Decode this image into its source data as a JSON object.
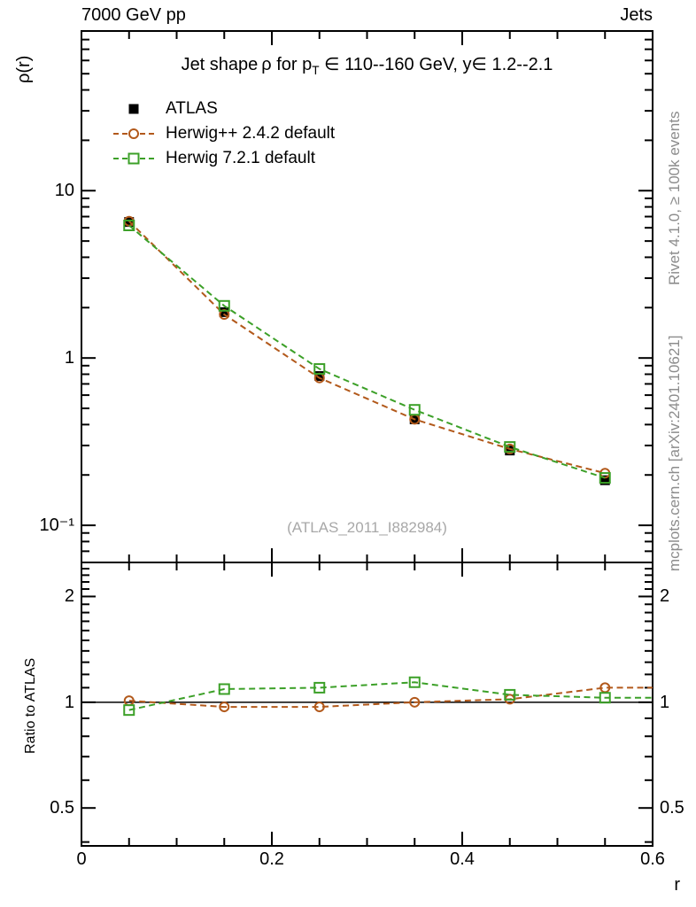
{
  "header": {
    "beam": "7000 GeV pp",
    "process": "Jets"
  },
  "title": {
    "part1": "Jet shape ρ for p",
    "sub": "T",
    "part2": " ∈ 110--160 GeV, y∈ 1.2--2.1"
  },
  "watermark": "(ATLAS_2011_I882984)",
  "side_notes": {
    "rivet": "Rivet 4.1.0, ≥ 100k events",
    "mcplots": "mcplots.cern.ch [arXiv:2401.10621]"
  },
  "colors": {
    "axis": "#000000",
    "gray_text": "#8c8c8c",
    "watermark": "#a8a8a8",
    "atlas": "#000000",
    "herwigpp": "#b2591b",
    "herwig7": "#3ca028"
  },
  "chart_data": {
    "type": "line",
    "title": "Jet shape ρ for p_T ∈ 110--160 GeV, y ∈ 1.2--2.1",
    "xlabel": "r",
    "ylabel": "ρ(r)",
    "ratio_ylabel": "Ratio to ATLAS",
    "yscale": "log",
    "ratio_yscale": "log",
    "grid": false,
    "legend_position": "top-left",
    "xlim": [
      0,
      0.6
    ],
    "ylim": [
      0.06,
      90
    ],
    "ratio_ylim": [
      0.39,
      2.5
    ],
    "x": [
      0.05,
      0.15,
      0.25,
      0.35,
      0.45,
      0.55
    ],
    "x_ticks": [
      {
        "v": 0,
        "label": "0"
      },
      {
        "v": 0.2,
        "label": "0.2"
      },
      {
        "v": 0.4,
        "label": "0.4"
      },
      {
        "v": 0.6,
        "label": "0.6"
      }
    ],
    "x_minor_step": 0.05,
    "y_ticks": [
      {
        "v": 10,
        "label": "10"
      },
      {
        "v": 1,
        "label": "1"
      },
      {
        "v": 0.1,
        "label": "10⁻¹"
      }
    ],
    "ratio_ticks": [
      {
        "v": 2,
        "label": "2"
      },
      {
        "v": 1,
        "label": "1"
      },
      {
        "v": 0.5,
        "label": "0.5"
      }
    ],
    "series": [
      {
        "name": "ATLAS",
        "marker": "filled-square",
        "line": "none",
        "color": "#000000",
        "values": [
          6.5,
          1.88,
          0.78,
          0.43,
          0.28,
          0.186
        ]
      },
      {
        "name": "Herwig++ 2.4.2 default",
        "marker": "open-circle",
        "line": "dashed",
        "color": "#b2591b",
        "values": [
          6.57,
          1.82,
          0.76,
          0.43,
          0.286,
          0.205
        ],
        "ratio_to_atlas": [
          1.01,
          0.97,
          0.97,
          1.0,
          1.02,
          1.1
        ]
      },
      {
        "name": "Herwig 7.2.1 default",
        "marker": "open-square",
        "line": "dashed",
        "color": "#3ca028",
        "values": [
          6.2,
          2.05,
          0.86,
          0.49,
          0.294,
          0.192
        ],
        "ratio_to_atlas": [
          0.95,
          1.09,
          1.1,
          1.14,
          1.05,
          1.03
        ]
      }
    ]
  }
}
